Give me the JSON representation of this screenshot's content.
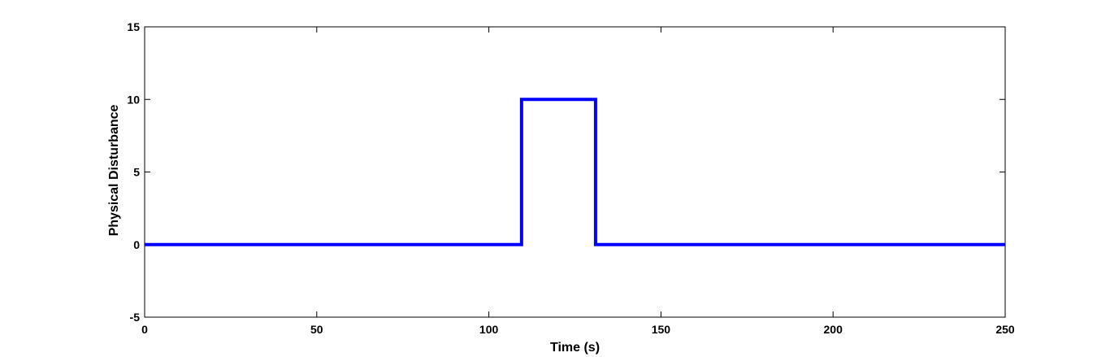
{
  "chart_data": {
    "type": "line",
    "xlabel": "Time (s)",
    "ylabel": "Physical Disturbance",
    "xlim": [
      0,
      250
    ],
    "ylim": [
      -5,
      15
    ],
    "xticks": [
      0,
      50,
      100,
      150,
      200,
      250
    ],
    "yticks": [
      -5,
      0,
      5,
      10,
      15
    ],
    "grid": false,
    "series": [
      {
        "color": "#0000ff",
        "x": [
          0,
          109.5,
          109.5,
          131,
          131,
          250
        ],
        "y": [
          0,
          0,
          10,
          10,
          0,
          0
        ]
      }
    ]
  }
}
